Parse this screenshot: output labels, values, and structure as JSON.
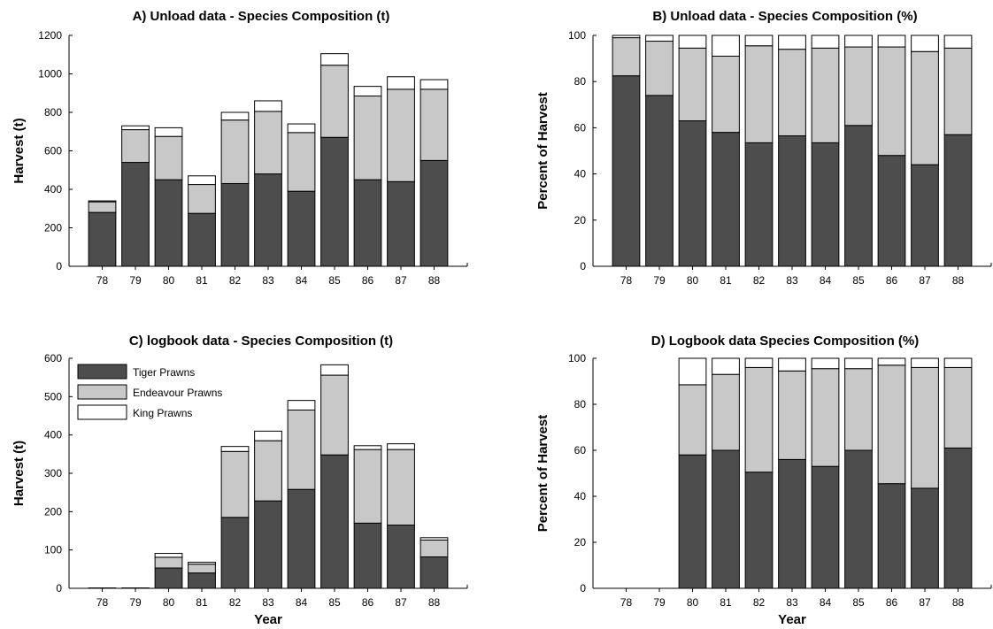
{
  "colors": {
    "tiger": "#4d4d4d",
    "endeavour": "#c8c8c8",
    "king": "#ffffff",
    "stroke": "#000000"
  },
  "legend": {
    "placement": "top-left",
    "entries": [
      "Tiger Prawns",
      "Endeavour Prawns",
      "King Prawns"
    ]
  },
  "chart_data": [
    {
      "type": "bar",
      "stacked": true,
      "title": "A) Unload data - Species Composition (t)",
      "xlabel": "",
      "ylabel": "Harvest (t)",
      "ylim": [
        0,
        1200
      ],
      "yticks": [
        0,
        200,
        400,
        600,
        800,
        1000,
        1200
      ],
      "categories": [
        "78",
        "79",
        "80",
        "81",
        "82",
        "83",
        "84",
        "85",
        "86",
        "87",
        "88"
      ],
      "series": [
        {
          "name": "Tiger Prawns",
          "values": [
            280,
            540,
            450,
            275,
            430,
            480,
            390,
            670,
            450,
            440,
            550
          ]
        },
        {
          "name": "Endeavour Prawns",
          "values": [
            55,
            170,
            225,
            150,
            330,
            325,
            305,
            375,
            435,
            480,
            370
          ]
        },
        {
          "name": "King Prawns",
          "values": [
            5,
            20,
            45,
            45,
            40,
            55,
            45,
            60,
            50,
            65,
            50
          ]
        }
      ]
    },
    {
      "type": "bar",
      "stacked": true,
      "title": "B) Unload data - Species Composition (%)",
      "xlabel": "",
      "ylabel": "Percent of Harvest",
      "ylim": [
        0,
        100
      ],
      "yticks": [
        0,
        20,
        40,
        60,
        80,
        100
      ],
      "categories": [
        "78",
        "79",
        "80",
        "81",
        "82",
        "83",
        "84",
        "85",
        "86",
        "87",
        "88"
      ],
      "series": [
        {
          "name": "Tiger Prawns",
          "values": [
            82.5,
            74,
            63,
            58,
            53.5,
            56.5,
            53.5,
            61,
            48,
            44,
            57
          ]
        },
        {
          "name": "Endeavour Prawns",
          "values": [
            16.5,
            23.5,
            31.5,
            33,
            42,
            37.5,
            41,
            34,
            47,
            49,
            37.5
          ]
        },
        {
          "name": "King Prawns",
          "values": [
            1,
            2.5,
            5.5,
            9,
            4.5,
            6,
            5.5,
            5,
            5,
            7,
            5.5
          ]
        }
      ]
    },
    {
      "type": "bar",
      "stacked": true,
      "title": "C) logbook data - Species Composition (t)",
      "xlabel": "Year",
      "ylabel": "Harvest (t)",
      "ylim": [
        0,
        600
      ],
      "yticks": [
        0,
        100,
        200,
        300,
        400,
        500,
        600
      ],
      "categories": [
        "78",
        "79",
        "80",
        "81",
        "82",
        "83",
        "84",
        "85",
        "86",
        "87",
        "88"
      ],
      "series": [
        {
          "name": "Tiger Prawns",
          "values": [
            1,
            1,
            53,
            40,
            185,
            228,
            258,
            348,
            170,
            165,
            82
          ]
        },
        {
          "name": "Endeavour Prawns",
          "values": [
            0,
            0,
            28,
            23,
            172,
            157,
            207,
            208,
            192,
            197,
            44
          ]
        },
        {
          "name": "King Prawns",
          "values": [
            0,
            0,
            10,
            5,
            13,
            25,
            25,
            27,
            10,
            15,
            6
          ]
        }
      ]
    },
    {
      "type": "bar",
      "stacked": true,
      "title": "D) Logbook data Species Composition (%)",
      "xlabel": "Year",
      "ylabel": "Percent of Harvest",
      "ylim": [
        0,
        100
      ],
      "yticks": [
        0,
        20,
        40,
        60,
        80,
        100
      ],
      "categories": [
        "78",
        "79",
        "80",
        "81",
        "82",
        "83",
        "84",
        "85",
        "86",
        "87",
        "88"
      ],
      "series": [
        {
          "name": "Tiger Prawns",
          "values": [
            0,
            0,
            58,
            60,
            50.5,
            56,
            53,
            60,
            45.5,
            43.5,
            61
          ]
        },
        {
          "name": "Endeavour Prawns",
          "values": [
            0,
            0,
            30.5,
            33,
            45.5,
            38.5,
            42.5,
            35.5,
            51.5,
            52.5,
            35
          ]
        },
        {
          "name": "King Prawns",
          "values": [
            0,
            0,
            11.5,
            7,
            4,
            5.5,
            4.5,
            4.5,
            3,
            4,
            4
          ]
        }
      ]
    }
  ]
}
